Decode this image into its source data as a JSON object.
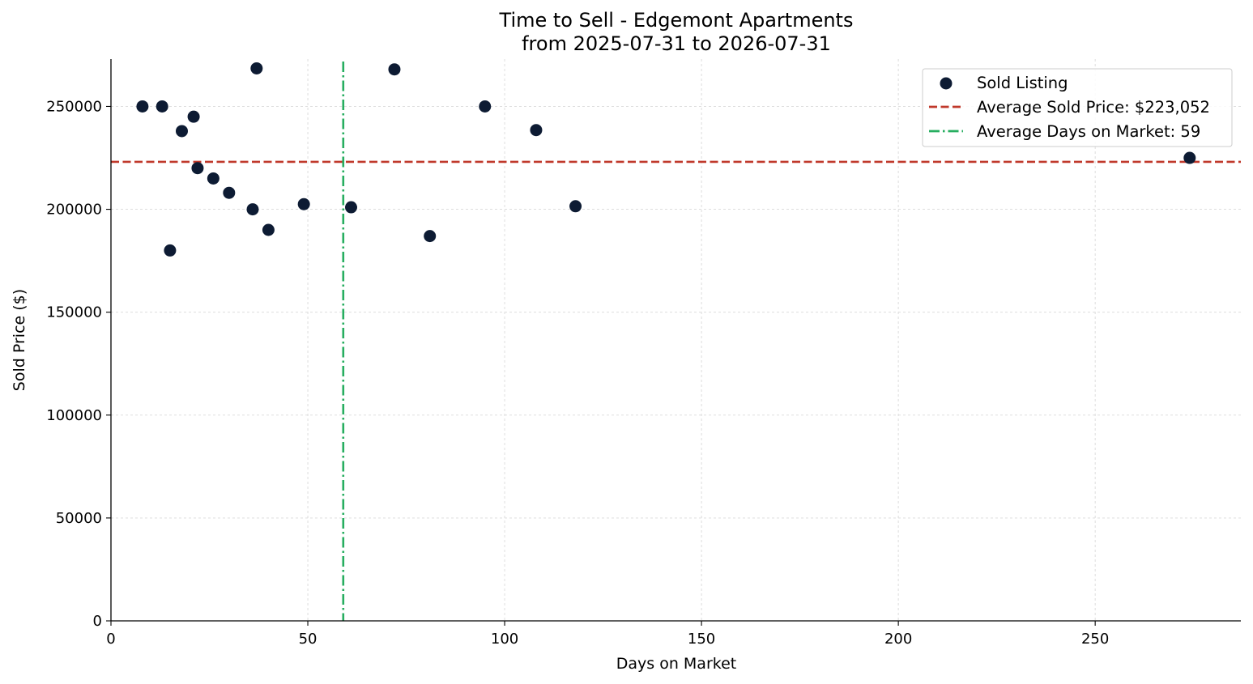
{
  "chart_data": {
    "type": "scatter",
    "title": "Time to Sell - Edgemont Apartments",
    "subtitle": "from 2025-07-31 to 2026-07-31",
    "xlabel": "Days on Market",
    "ylabel": "Sold Price ($)",
    "xlim": [
      0,
      287
    ],
    "ylim": [
      0,
      273000
    ],
    "x_ticks": [
      0,
      50,
      100,
      150,
      200,
      250
    ],
    "y_ticks": [
      0,
      50000,
      100000,
      150000,
      200000,
      250000
    ],
    "grid": true,
    "legend_position": "top-right",
    "series": [
      {
        "name": "Sold Listing",
        "color": "#0d1b33",
        "points": [
          {
            "x": 8,
            "y": 250000
          },
          {
            "x": 13,
            "y": 250000
          },
          {
            "x": 15,
            "y": 180000
          },
          {
            "x": 18,
            "y": 238000
          },
          {
            "x": 21,
            "y": 245000
          },
          {
            "x": 22,
            "y": 220000
          },
          {
            "x": 26,
            "y": 215000
          },
          {
            "x": 30,
            "y": 208000
          },
          {
            "x": 36,
            "y": 200000
          },
          {
            "x": 37,
            "y": 268500
          },
          {
            "x": 40,
            "y": 190000
          },
          {
            "x": 49,
            "y": 202500
          },
          {
            "x": 61,
            "y": 201000
          },
          {
            "x": 72,
            "y": 268000
          },
          {
            "x": 81,
            "y": 187000
          },
          {
            "x": 95,
            "y": 250000
          },
          {
            "x": 108,
            "y": 238500
          },
          {
            "x": 118,
            "y": 201500
          },
          {
            "x": 274,
            "y": 225000
          }
        ]
      }
    ],
    "reference_lines": [
      {
        "name": "Average Sold Price: $223,052",
        "orientation": "horizontal",
        "value": 223052,
        "color": "#c0392b",
        "style": "dashed"
      },
      {
        "name": "Average Days on Market: 59",
        "orientation": "vertical",
        "value": 59,
        "color": "#27ae60",
        "style": "dashdot"
      }
    ]
  }
}
